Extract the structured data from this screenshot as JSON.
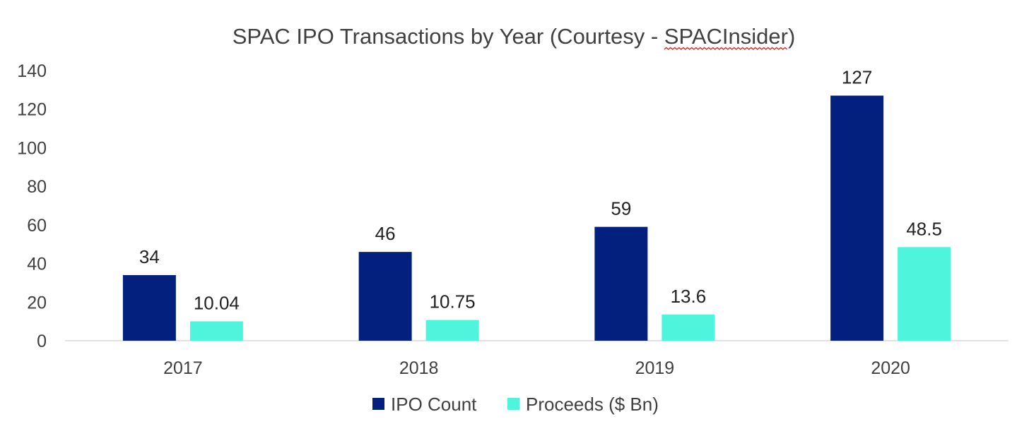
{
  "chart_data": {
    "type": "bar",
    "title_main": "SPAC IPO Transactions by Year (Courtesy - ",
    "title_source": "SPACInsider",
    "title_end": ")",
    "categories": [
      "2017",
      "2018",
      "2019",
      "2020"
    ],
    "series": [
      {
        "name": "IPO Count",
        "color": "#03207f",
        "values": [
          34,
          46,
          59,
          127
        ],
        "labels": [
          "34",
          "46",
          "59",
          "127"
        ]
      },
      {
        "name": "Proceeds ($ Bn)",
        "color": "#4ef5dc",
        "values": [
          10.04,
          10.75,
          13.6,
          48.5
        ],
        "labels": [
          "10.04",
          "10.75",
          "13.6",
          "48.5"
        ]
      }
    ],
    "ylim": [
      0,
      140
    ],
    "yticks": [
      0,
      20,
      40,
      60,
      80,
      100,
      120,
      140
    ],
    "ytick_labels": [
      "0",
      "20",
      "40",
      "60",
      "80",
      "100",
      "120",
      "140"
    ],
    "xlabel": "",
    "ylabel": "",
    "grid": false,
    "legend_position": "bottom",
    "axis_color": "#d9d9d9",
    "squiggle_color": "#e02020"
  }
}
